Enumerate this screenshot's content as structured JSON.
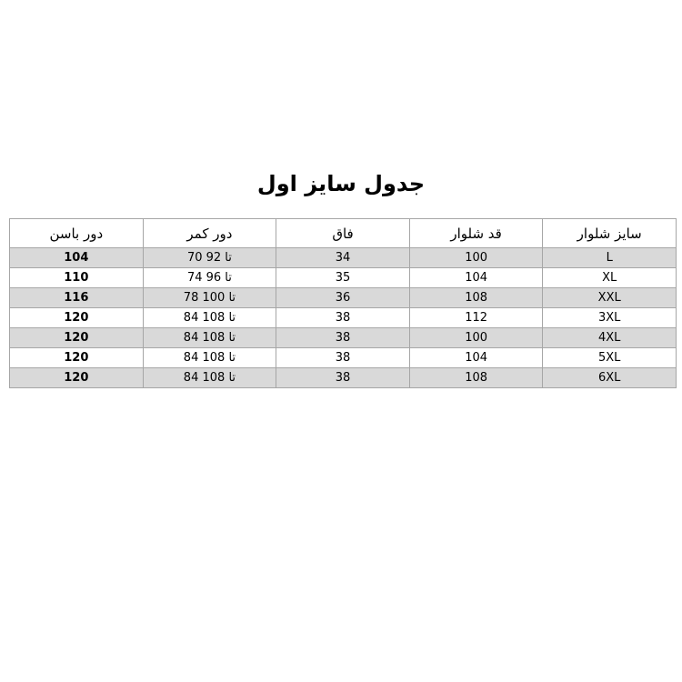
{
  "header": {
    "title": "جدول سایز اول"
  },
  "table": {
    "columns": [
      "سایز شلوار",
      "قد شلوار",
      "فاق",
      "دور کمر",
      "دور باسن"
    ],
    "rows": [
      [
        "L",
        "100",
        "34",
        "70 تا 92",
        "104"
      ],
      [
        "XL",
        "104",
        "35",
        "74 تا 96",
        "110"
      ],
      [
        "XXL",
        "108",
        "36",
        "78 تا 100",
        "116"
      ],
      [
        "3XL",
        "112",
        "38",
        "84 تا 108",
        "120"
      ],
      [
        "4XL",
        "100",
        "38",
        "84 تا 108",
        "120"
      ],
      [
        "5XL",
        "104",
        "38",
        "84 تا 108",
        "120"
      ],
      [
        "6XL",
        "108",
        "38",
        "84 تا 108",
        "120"
      ]
    ]
  }
}
